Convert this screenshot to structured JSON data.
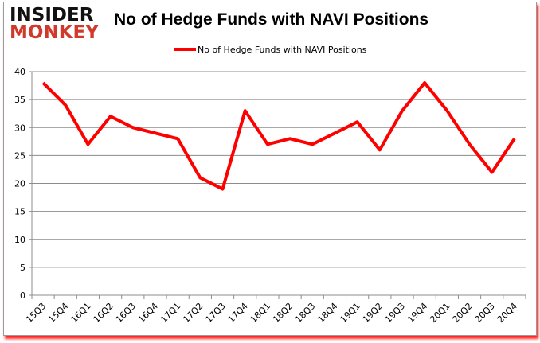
{
  "logo": {
    "line1": "INSIDER",
    "line2": "MONKEY"
  },
  "chart_data": {
    "type": "line",
    "title": "No of Hedge Funds with NAVI Positions",
    "categories": [
      "15Q3",
      "15Q4",
      "16Q1",
      "16Q2",
      "16Q3",
      "16Q4",
      "17Q1",
      "17Q2",
      "17Q3",
      "17Q4",
      "18Q1",
      "18Q2",
      "18Q3",
      "18Q4",
      "19Q1",
      "19Q2",
      "19Q3",
      "19Q4",
      "20Q1",
      "20Q2",
      "20Q3",
      "20Q4"
    ],
    "series": [
      {
        "name": "No of Hedge Funds with NAVI Positions",
        "color": "#ff0000",
        "values": [
          38,
          34,
          27,
          32,
          30,
          29,
          28,
          21,
          19,
          33,
          27,
          28,
          27,
          29,
          31,
          26,
          33,
          38,
          33,
          27,
          22,
          28
        ]
      }
    ],
    "ylim": [
      0,
      40
    ],
    "yticks": [
      0,
      5,
      10,
      15,
      20,
      25,
      30,
      35,
      40
    ],
    "grid": true,
    "legend": "top-center"
  }
}
